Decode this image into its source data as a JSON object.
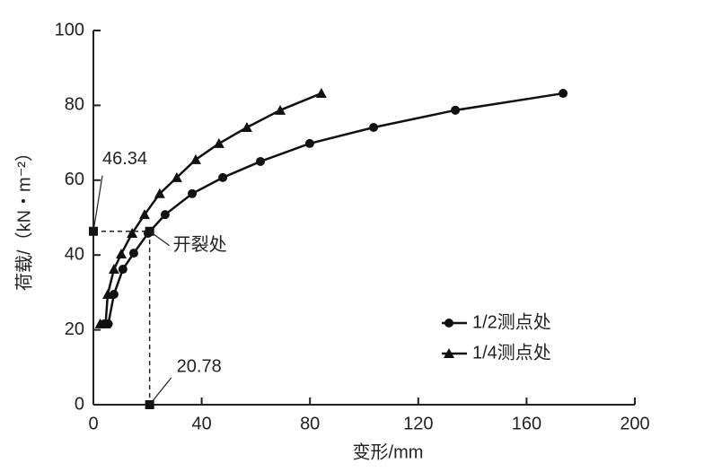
{
  "chart_data": {
    "type": "line",
    "x_label": "变形/mm",
    "y_label": "荷载/（kN・m⁻²）",
    "xlim": [
      0,
      200
    ],
    "xticks": [
      0,
      40,
      80,
      120,
      160,
      200
    ],
    "ylim": [
      0,
      100
    ],
    "yticks": [
      0,
      20,
      40,
      60,
      80,
      100
    ],
    "grid": false,
    "legend": "lower right",
    "series": [
      {
        "name": "1/2测点处",
        "color": "#111111",
        "marker": "circle",
        "x": [
          4,
          5.5,
          7.6,
          10.9,
          14.9,
          20.2,
          26.5,
          36.5,
          47.8,
          61.7,
          79.9,
          103.5,
          133.7,
          173.5
        ],
        "values": [
          21.6,
          21.6,
          29.5,
          36.2,
          40.5,
          45.8,
          50.8,
          56.4,
          60.7,
          65,
          69.8,
          74.1,
          78.7,
          83.2
        ]
      },
      {
        "name": "1/4测点处",
        "color": "#111111",
        "marker": "triangle",
        "x": [
          2.5,
          4.5,
          5.3,
          7.6,
          10.3,
          14.3,
          18.9,
          24.5,
          30.8,
          37.8,
          46.4,
          56.7,
          69,
          84.2
        ],
        "values": [
          21.6,
          21.6,
          29.5,
          36.2,
          40.3,
          45.8,
          50.8,
          56.4,
          60.7,
          65.5,
          69.8,
          74.1,
          78.7,
          83.2
        ]
      }
    ],
    "crack": {
      "x": 20.78,
      "y": 46.34,
      "label": "开裂处"
    }
  }
}
